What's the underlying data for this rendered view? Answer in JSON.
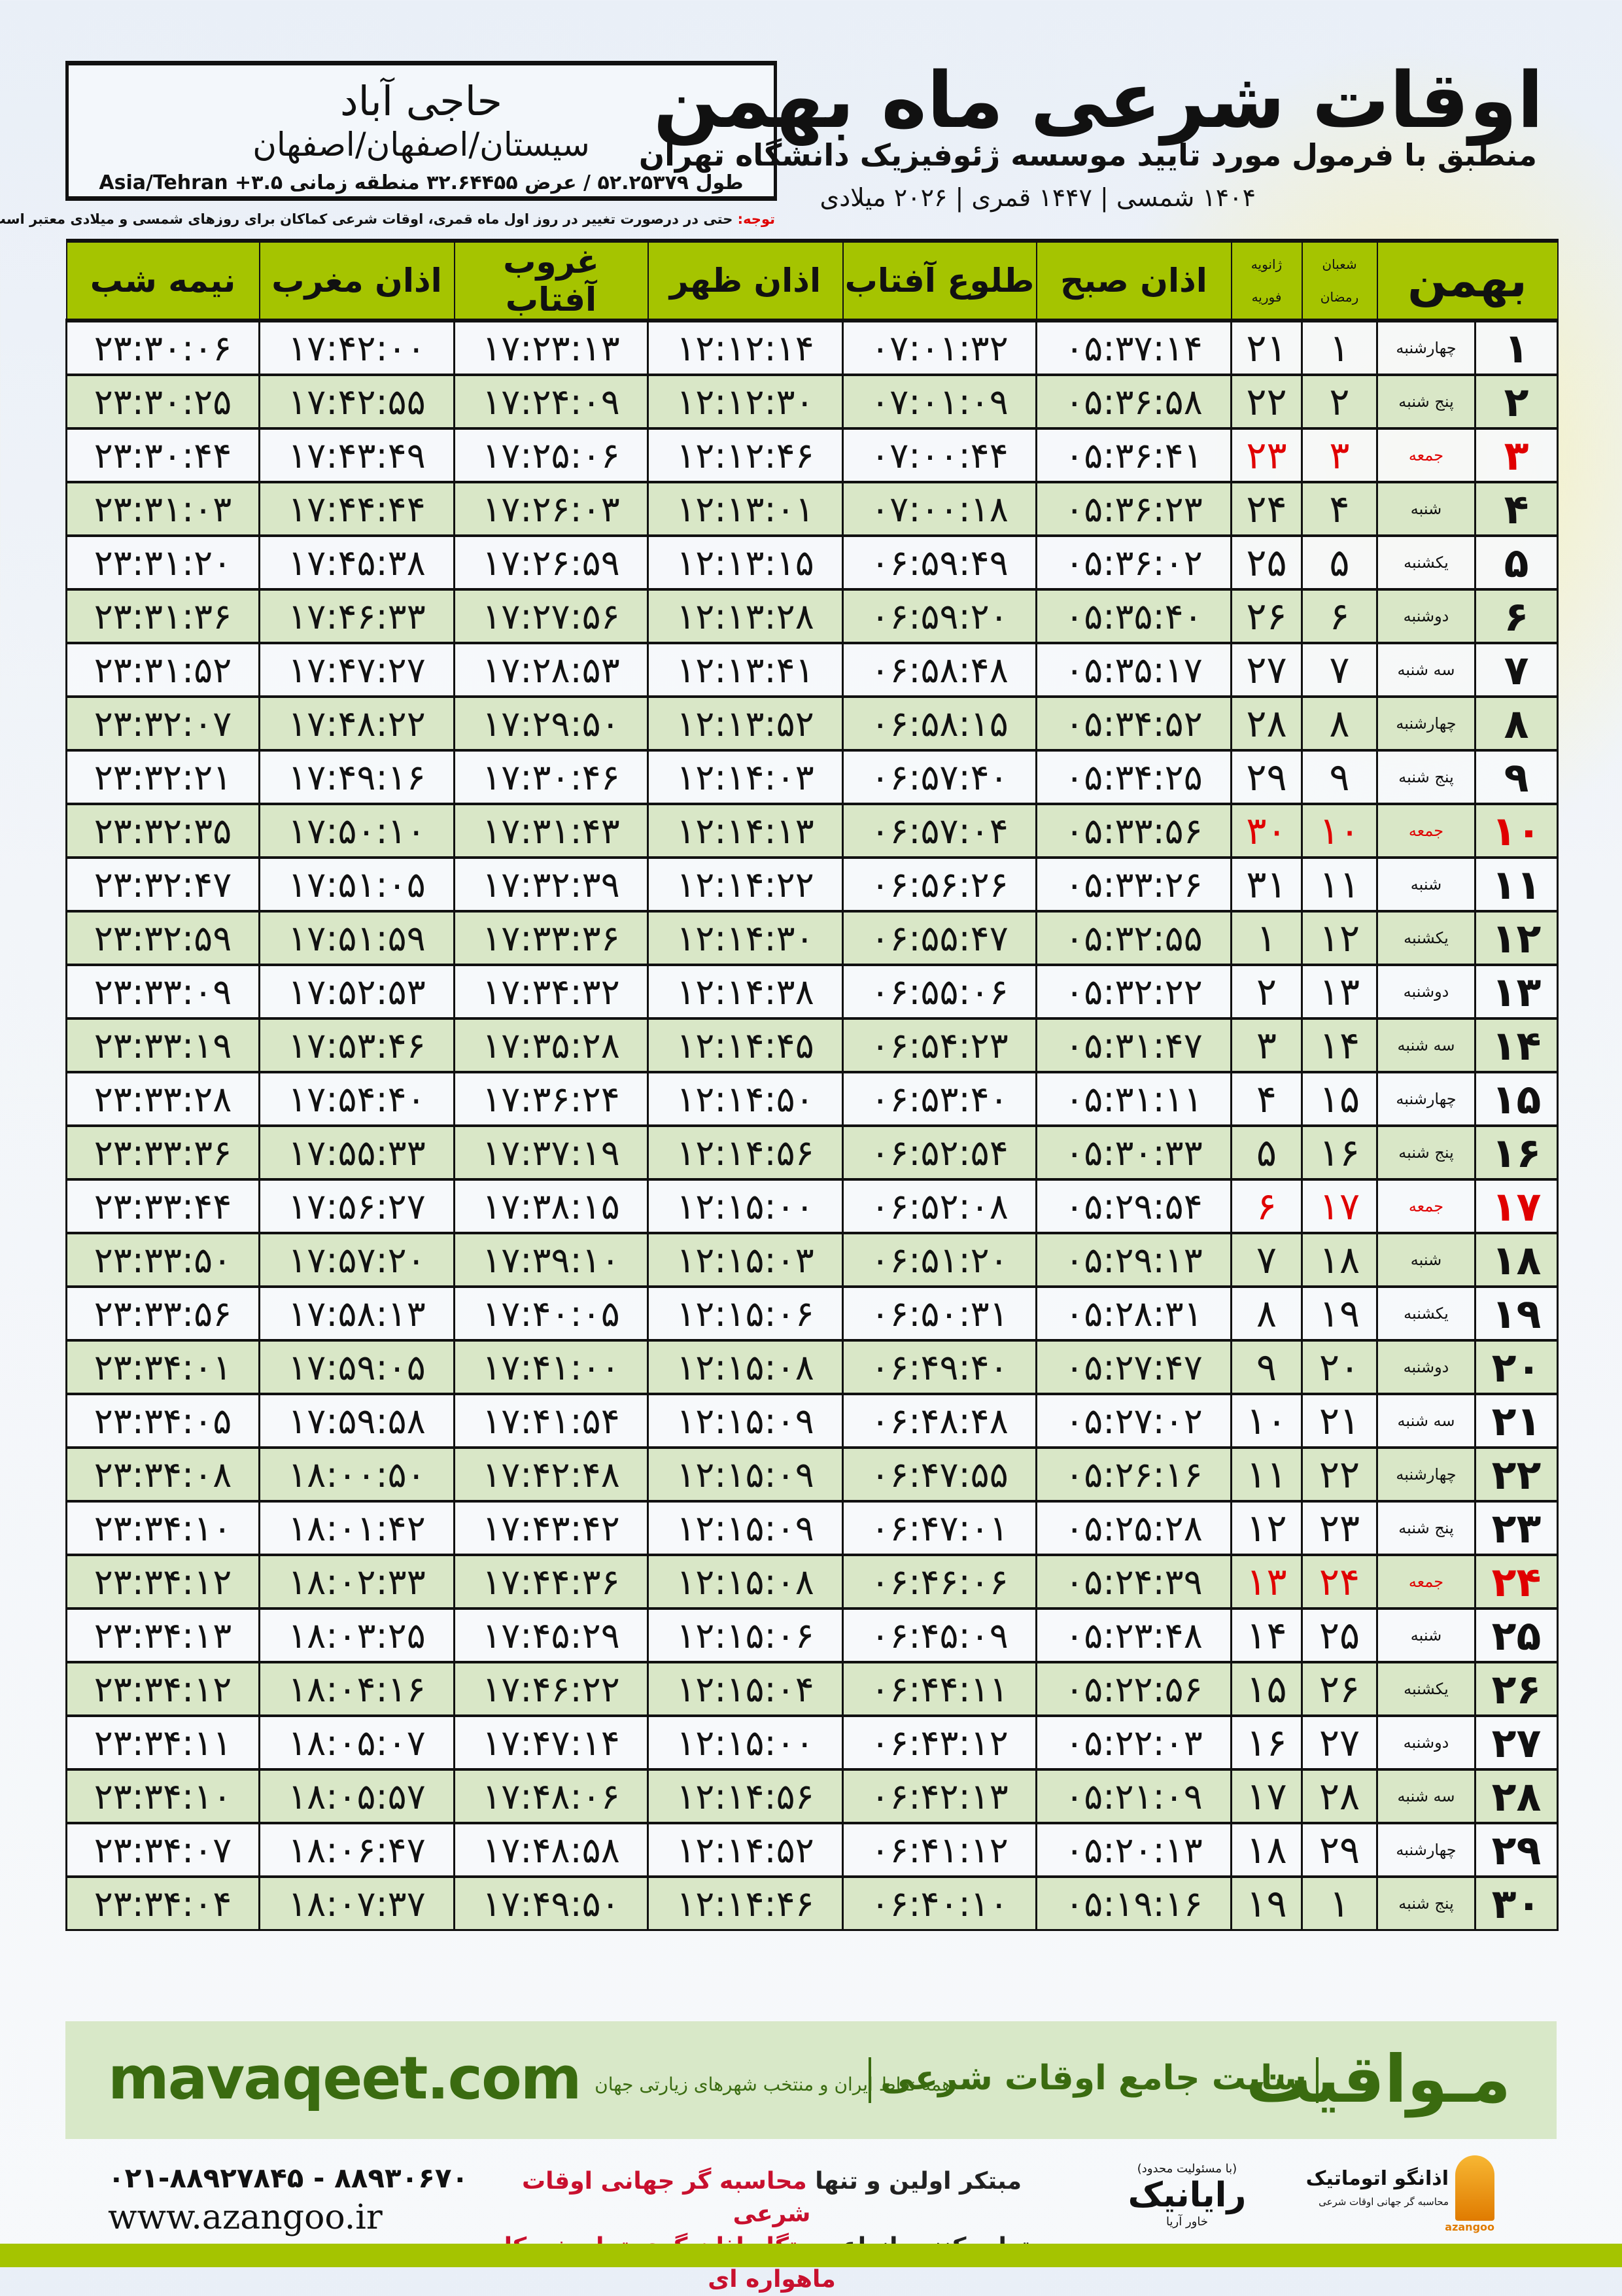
{
  "location": {
    "city": "حاجی آباد",
    "path": "سیستان/اصفهان/اصفهان",
    "coords": "طول ۵۲.۲۵۳۷۹ / عرض ۳۲.۶۴۴۵۵ منطقه زمانی ۳.۵+ Asia/Tehran"
  },
  "header": {
    "title": "اوقات شرعی ماه بهمن",
    "subtitle": "منطبق با فرمول مورد تایید موسسه ژئوفیزیک دانشگاه تهران",
    "dates": "۱۴۰۴ شمسی | ۱۴۴۷ قمری | ۲۰۲۶ میلادی"
  },
  "note": {
    "label": "توجه:",
    "text": " حتی در درصورت تغییر در روز اول ماه قمری، اوقات شرعی کماکان برای روزهای شمسی و میلادی معتبر است."
  },
  "table": {
    "columns": {
      "month": "بهمن",
      "hijri_1": "شعبان",
      "hijri_2": "رمضان",
      "greg_1": "ژانویه",
      "greg_2": "فوریه",
      "fajr": "اذان صبح",
      "sunrise": "طلوع آفتاب",
      "dhuhr": "اذان ظهر",
      "sunset": "غروب آفتاب",
      "maghrib": "اذان مغرب",
      "midnight": "نیمه شب"
    },
    "rows": [
      [
        "۱",
        "چهارشنبه",
        "۱",
        "۲۱",
        "۰۵:۳۷:۱۴",
        "۰۷:۰۱:۳۲",
        "۱۲:۱۲:۱۴",
        "۱۷:۲۳:۱۳",
        "۱۷:۴۲:۰۰",
        "۲۳:۳۰:۰۶",
        false
      ],
      [
        "۲",
        "پنج شنبه",
        "۲",
        "۲۲",
        "۰۵:۳۶:۵۸",
        "۰۷:۰۱:۰۹",
        "۱۲:۱۲:۳۰",
        "۱۷:۲۴:۰۹",
        "۱۷:۴۲:۵۵",
        "۲۳:۳۰:۲۵",
        false
      ],
      [
        "۳",
        "جمعه",
        "۳",
        "۲۳",
        "۰۵:۳۶:۴۱",
        "۰۷:۰۰:۴۴",
        "۱۲:۱۲:۴۶",
        "۱۷:۲۵:۰۶",
        "۱۷:۴۳:۴۹",
        "۲۳:۳۰:۴۴",
        true
      ],
      [
        "۴",
        "شنبه",
        "۴",
        "۲۴",
        "۰۵:۳۶:۲۳",
        "۰۷:۰۰:۱۸",
        "۱۲:۱۳:۰۱",
        "۱۷:۲۶:۰۳",
        "۱۷:۴۴:۴۴",
        "۲۳:۳۱:۰۳",
        false
      ],
      [
        "۵",
        "یکشنبه",
        "۵",
        "۲۵",
        "۰۵:۳۶:۰۲",
        "۰۶:۵۹:۴۹",
        "۱۲:۱۳:۱۵",
        "۱۷:۲۶:۵۹",
        "۱۷:۴۵:۳۸",
        "۲۳:۳۱:۲۰",
        false
      ],
      [
        "۶",
        "دوشنبه",
        "۶",
        "۲۶",
        "۰۵:۳۵:۴۰",
        "۰۶:۵۹:۲۰",
        "۱۲:۱۳:۲۸",
        "۱۷:۲۷:۵۶",
        "۱۷:۴۶:۳۳",
        "۲۳:۳۱:۳۶",
        false
      ],
      [
        "۷",
        "سه شنبه",
        "۷",
        "۲۷",
        "۰۵:۳۵:۱۷",
        "۰۶:۵۸:۴۸",
        "۱۲:۱۳:۴۱",
        "۱۷:۲۸:۵۳",
        "۱۷:۴۷:۲۷",
        "۲۳:۳۱:۵۲",
        false
      ],
      [
        "۸",
        "چهارشنبه",
        "۸",
        "۲۸",
        "۰۵:۳۴:۵۲",
        "۰۶:۵۸:۱۵",
        "۱۲:۱۳:۵۲",
        "۱۷:۲۹:۵۰",
        "۱۷:۴۸:۲۲",
        "۲۳:۳۲:۰۷",
        false
      ],
      [
        "۹",
        "پنج شنبه",
        "۹",
        "۲۹",
        "۰۵:۳۴:۲۵",
        "۰۶:۵۷:۴۰",
        "۱۲:۱۴:۰۳",
        "۱۷:۳۰:۴۶",
        "۱۷:۴۹:۱۶",
        "۲۳:۳۲:۲۱",
        false
      ],
      [
        "۱۰",
        "جمعه",
        "۱۰",
        "۳۰",
        "۰۵:۳۳:۵۶",
        "۰۶:۵۷:۰۴",
        "۱۲:۱۴:۱۳",
        "۱۷:۳۱:۴۳",
        "۱۷:۵۰:۱۰",
        "۲۳:۳۲:۳۵",
        true
      ],
      [
        "۱۱",
        "شنبه",
        "۱۱",
        "۳۱",
        "۰۵:۳۳:۲۶",
        "۰۶:۵۶:۲۶",
        "۱۲:۱۴:۲۲",
        "۱۷:۳۲:۳۹",
        "۱۷:۵۱:۰۵",
        "۲۳:۳۲:۴۷",
        false
      ],
      [
        "۱۲",
        "یکشنبه",
        "۱۲",
        "۱",
        "۰۵:۳۲:۵۵",
        "۰۶:۵۵:۴۷",
        "۱۲:۱۴:۳۰",
        "۱۷:۳۳:۳۶",
        "۱۷:۵۱:۵۹",
        "۲۳:۳۲:۵۹",
        false
      ],
      [
        "۱۳",
        "دوشنبه",
        "۱۳",
        "۲",
        "۰۵:۳۲:۲۲",
        "۰۶:۵۵:۰۶",
        "۱۲:۱۴:۳۸",
        "۱۷:۳۴:۳۲",
        "۱۷:۵۲:۵۳",
        "۲۳:۳۳:۰۹",
        false
      ],
      [
        "۱۴",
        "سه شنبه",
        "۱۴",
        "۳",
        "۰۵:۳۱:۴۷",
        "۰۶:۵۴:۲۳",
        "۱۲:۱۴:۴۵",
        "۱۷:۳۵:۲۸",
        "۱۷:۵۳:۴۶",
        "۲۳:۳۳:۱۹",
        false
      ],
      [
        "۱۵",
        "چهارشنبه",
        "۱۵",
        "۴",
        "۰۵:۳۱:۱۱",
        "۰۶:۵۳:۴۰",
        "۱۲:۱۴:۵۰",
        "۱۷:۳۶:۲۴",
        "۱۷:۵۴:۴۰",
        "۲۳:۳۳:۲۸",
        false
      ],
      [
        "۱۶",
        "پنج شنبه",
        "۱۶",
        "۵",
        "۰۵:۳۰:۳۳",
        "۰۶:۵۲:۵۴",
        "۱۲:۱۴:۵۶",
        "۱۷:۳۷:۱۹",
        "۱۷:۵۵:۳۳",
        "۲۳:۳۳:۳۶",
        false
      ],
      [
        "۱۷",
        "جمعه",
        "۱۷",
        "۶",
        "۰۵:۲۹:۵۴",
        "۰۶:۵۲:۰۸",
        "۱۲:۱۵:۰۰",
        "۱۷:۳۸:۱۵",
        "۱۷:۵۶:۲۷",
        "۲۳:۳۳:۴۴",
        true
      ],
      [
        "۱۸",
        "شنبه",
        "۱۸",
        "۷",
        "۰۵:۲۹:۱۳",
        "۰۶:۵۱:۲۰",
        "۱۲:۱۵:۰۳",
        "۱۷:۳۹:۱۰",
        "۱۷:۵۷:۲۰",
        "۲۳:۳۳:۵۰",
        false
      ],
      [
        "۱۹",
        "یکشنبه",
        "۱۹",
        "۸",
        "۰۵:۲۸:۳۱",
        "۰۶:۵۰:۳۱",
        "۱۲:۱۵:۰۶",
        "۱۷:۴۰:۰۵",
        "۱۷:۵۸:۱۳",
        "۲۳:۳۳:۵۶",
        false
      ],
      [
        "۲۰",
        "دوشنبه",
        "۲۰",
        "۹",
        "۰۵:۲۷:۴۷",
        "۰۶:۴۹:۴۰",
        "۱۲:۱۵:۰۸",
        "۱۷:۴۱:۰۰",
        "۱۷:۵۹:۰۵",
        "۲۳:۳۴:۰۱",
        false
      ],
      [
        "۲۱",
        "سه شنبه",
        "۲۱",
        "۱۰",
        "۰۵:۲۷:۰۲",
        "۰۶:۴۸:۴۸",
        "۱۲:۱۵:۰۹",
        "۱۷:۴۱:۵۴",
        "۱۷:۵۹:۵۸",
        "۲۳:۳۴:۰۵",
        false
      ],
      [
        "۲۲",
        "چهارشنبه",
        "۲۲",
        "۱۱",
        "۰۵:۲۶:۱۶",
        "۰۶:۴۷:۵۵",
        "۱۲:۱۵:۰۹",
        "۱۷:۴۲:۴۸",
        "۱۸:۰۰:۵۰",
        "۲۳:۳۴:۰۸",
        false
      ],
      [
        "۲۳",
        "پنج شنبه",
        "۲۳",
        "۱۲",
        "۰۵:۲۵:۲۸",
        "۰۶:۴۷:۰۱",
        "۱۲:۱۵:۰۹",
        "۱۷:۴۳:۴۲",
        "۱۸:۰۱:۴۲",
        "۲۳:۳۴:۱۰",
        false
      ],
      [
        "۲۴",
        "جمعه",
        "۲۴",
        "۱۳",
        "۰۵:۲۴:۳۹",
        "۰۶:۴۶:۰۶",
        "۱۲:۱۵:۰۸",
        "۱۷:۴۴:۳۶",
        "۱۸:۰۲:۳۳",
        "۲۳:۳۴:۱۲",
        true
      ],
      [
        "۲۵",
        "شنبه",
        "۲۵",
        "۱۴",
        "۰۵:۲۳:۴۸",
        "۰۶:۴۵:۰۹",
        "۱۲:۱۵:۰۶",
        "۱۷:۴۵:۲۹",
        "۱۸:۰۳:۲۵",
        "۲۳:۳۴:۱۳",
        false
      ],
      [
        "۲۶",
        "یکشنبه",
        "۲۶",
        "۱۵",
        "۰۵:۲۲:۵۶",
        "۰۶:۴۴:۱۱",
        "۱۲:۱۵:۰۴",
        "۱۷:۴۶:۲۲",
        "۱۸:۰۴:۱۶",
        "۲۳:۳۴:۱۲",
        false
      ],
      [
        "۲۷",
        "دوشنبه",
        "۲۷",
        "۱۶",
        "۰۵:۲۲:۰۳",
        "۰۶:۴۳:۱۲",
        "۱۲:۱۵:۰۰",
        "۱۷:۴۷:۱۴",
        "۱۸:۰۵:۰۷",
        "۲۳:۳۴:۱۱",
        false
      ],
      [
        "۲۸",
        "سه شنبه",
        "۲۸",
        "۱۷",
        "۰۵:۲۱:۰۹",
        "۰۶:۴۲:۱۳",
        "۱۲:۱۴:۵۶",
        "۱۷:۴۸:۰۶",
        "۱۸:۰۵:۵۷",
        "۲۳:۳۴:۱۰",
        false
      ],
      [
        "۲۹",
        "چهارشنبه",
        "۲۹",
        "۱۸",
        "۰۵:۲۰:۱۳",
        "۰۶:۴۱:۱۲",
        "۱۲:۱۴:۵۲",
        "۱۷:۴۸:۵۸",
        "۱۸:۰۶:۴۷",
        "۲۳:۳۴:۰۷",
        false
      ],
      [
        "۳۰",
        "پنج شنبه",
        "۱",
        "۱۹",
        "۰۵:۱۹:۱۶",
        "۰۶:۴۰:۱۰",
        "۱۲:۱۴:۴۶",
        "۱۷:۴۹:۵۰",
        "۱۸:۰۷:۳۷",
        "۲۳:۳۴:۰۴",
        false
      ]
    ]
  },
  "colors": {
    "header_green": "#a5c400",
    "row_green": "#d9e7c7",
    "holiday_red": "#e00000",
    "brand_green": "#3a6b10",
    "promo_red": "#c8102e"
  },
  "banner": {
    "brand": "مـواقیت",
    "tagline": "سایت جامع اوقات شرعی",
    "tagline_sub": "همه نقاط ایران و منتخب شهرهای زیارتی جهان",
    "site": "mavaqeet.com"
  },
  "footer": {
    "phone": "۰۲۱-۸۸۹۲۷۸۴۵ - ۸۸۹۳۰۶۷۰",
    "website": "www.azangoo.ir",
    "promo_line1_a": "مبتکر اولین و تنها ",
    "promo_line1_b": "محاسبه گر جهانی اوقات شرعی",
    "promo_line2_a": "و تولید کننده انواع ",
    "promo_line2_b": "دستگاه اذان گوی تمام خودکار ماهواره ای",
    "rayanik_note": "(با مسئولیت محدود)",
    "rayanik_name": "رایانیک",
    "rayanik_sub": "خاور آریا",
    "azangoo_name": "اذانگو اتوماتیک",
    "azangoo_sub": "محاسبه گر جهانی اوقات شرعی",
    "azangoo_latin": "azangoo"
  }
}
